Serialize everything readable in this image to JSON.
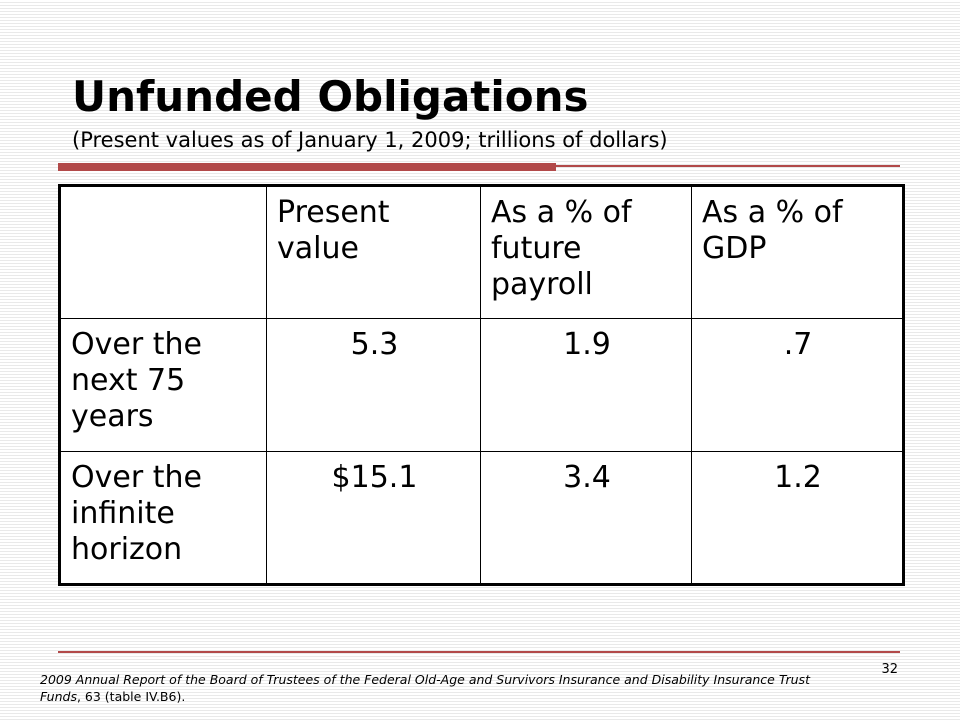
{
  "title": "Unfunded Obligations",
  "subtitle": "(Present values as of January 1, 2009; trillions of dollars)",
  "table": {
    "columns": [
      "",
      "Present value",
      "As a % of future payroll",
      "As a % of GDP"
    ],
    "rows": [
      {
        "label": "Over the next 75 years",
        "cells": [
          "5.3",
          "1.9",
          ".7"
        ]
      },
      {
        "label": "Over the infinite horizon",
        "cells": [
          "$15.1",
          "3.4",
          "1.2"
        ]
      }
    ]
  },
  "page_number": "32",
  "citation": {
    "italic": "2009 Annual Report of the Board of Trustees of the Federal Old-Age and Survivors Insurance and Disability Insurance Trust Funds",
    "rest": ", 63 (table IV.B6)."
  },
  "colors": {
    "accent": "#b24a4a",
    "table_border": "#000000",
    "background_lines": "#e9e9e9"
  }
}
